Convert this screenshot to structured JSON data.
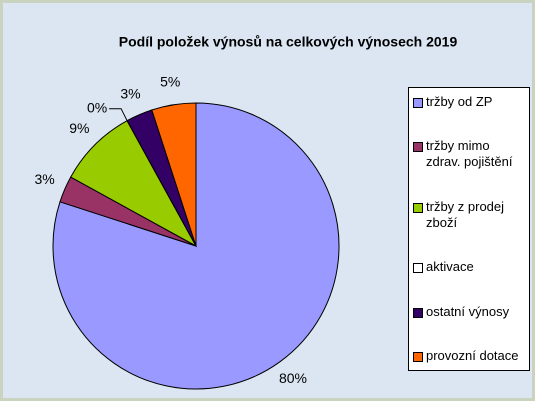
{
  "chart_data": {
    "type": "pie",
    "title": "Podíl položek výnosů na celkových výnosech 2019",
    "categories": [
      "tržby od ZP",
      "tržby mimo zdrav. pojištění",
      "tržby z prodej zboží",
      "aktivace",
      "ostatní výnosy",
      "provozní dotace"
    ],
    "values": [
      80,
      3,
      9,
      0,
      3,
      5
    ],
    "value_labels": [
      "80%",
      "3%",
      "9%",
      "0%",
      "3%",
      "5%"
    ],
    "colors": [
      "#9999ff",
      "#993366",
      "#99cc00",
      "#ffffff",
      "#330066",
      "#ff6600"
    ],
    "legend": "right"
  }
}
